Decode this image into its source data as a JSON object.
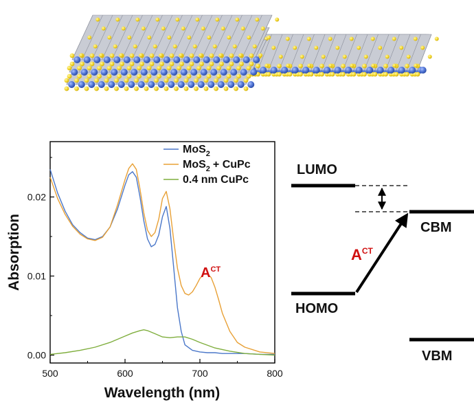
{
  "chart_data": {
    "type": "line",
    "xlabel": "Wavelength (nm)",
    "ylabel": "Absorption",
    "xlim": [
      500,
      800
    ],
    "ylim": [
      -0.001,
      0.027
    ],
    "xticks": [
      "500",
      "600",
      "700",
      "800"
    ],
    "yticks": [
      "0.00",
      "0.01",
      "0.02"
    ],
    "legend_placement": "top-right",
    "series": [
      {
        "name": "MoS2",
        "legend": {
          "base": "MoS",
          "sub": "2",
          "rest": ""
        },
        "color": "#4a77c9",
        "x": [
          500,
          510,
          520,
          530,
          540,
          550,
          560,
          570,
          580,
          590,
          600,
          605,
          610,
          615,
          620,
          625,
          630,
          635,
          640,
          645,
          650,
          655,
          660,
          665,
          670,
          675,
          680,
          690,
          700,
          710,
          720,
          730,
          740,
          760,
          780,
          800
        ],
        "y": [
          0.0235,
          0.0205,
          0.0182,
          0.0165,
          0.0155,
          0.0148,
          0.0146,
          0.015,
          0.0162,
          0.0185,
          0.0215,
          0.0228,
          0.0232,
          0.0225,
          0.02,
          0.017,
          0.0147,
          0.0137,
          0.014,
          0.0152,
          0.0175,
          0.0188,
          0.016,
          0.011,
          0.006,
          0.003,
          0.0013,
          0.0006,
          0.0004,
          0.0003,
          0.0003,
          0.0002,
          0.0002,
          0.0002,
          0.0001,
          0.0001
        ]
      },
      {
        "name": "MoS2 + CuPc",
        "legend": {
          "base": "MoS",
          "sub": "2",
          "rest": "+ CuPc"
        },
        "color": "#e8a035",
        "x": [
          500,
          510,
          520,
          530,
          540,
          550,
          560,
          570,
          580,
          590,
          600,
          605,
          610,
          615,
          620,
          625,
          630,
          635,
          640,
          645,
          650,
          655,
          660,
          665,
          670,
          675,
          680,
          685,
          690,
          695,
          700,
          705,
          710,
          715,
          720,
          725,
          730,
          740,
          750,
          760,
          780,
          800
        ],
        "y": [
          0.0225,
          0.0198,
          0.0178,
          0.0163,
          0.0153,
          0.0147,
          0.0145,
          0.0149,
          0.0162,
          0.019,
          0.0222,
          0.0236,
          0.0242,
          0.0235,
          0.021,
          0.018,
          0.0158,
          0.015,
          0.0155,
          0.0172,
          0.0198,
          0.0207,
          0.0185,
          0.0145,
          0.011,
          0.0088,
          0.0078,
          0.0076,
          0.008,
          0.0088,
          0.0097,
          0.0102,
          0.0103,
          0.0098,
          0.0086,
          0.007,
          0.0053,
          0.003,
          0.0016,
          0.001,
          0.0004,
          0.0002
        ]
      },
      {
        "name": "0.4 nm CuPc",
        "legend": {
          "base": "0.4 nm CuPc",
          "sub": "",
          "rest": ""
        },
        "color": "#7fae3d",
        "x": [
          500,
          520,
          540,
          560,
          580,
          600,
          610,
          620,
          625,
          630,
          640,
          650,
          660,
          670,
          680,
          690,
          700,
          720,
          740,
          760,
          780,
          800
        ],
        "y": [
          0.0001,
          0.0003,
          0.0006,
          0.001,
          0.0016,
          0.0024,
          0.0028,
          0.0031,
          0.0032,
          0.0031,
          0.0027,
          0.0023,
          0.0022,
          0.0023,
          0.0023,
          0.002,
          0.0016,
          0.0009,
          0.0005,
          0.0002,
          0.0001,
          0.0
        ]
      }
    ],
    "annotations": [
      {
        "base": "A",
        "sup": "CT",
        "color": "#d01010"
      }
    ]
  },
  "energy_diagram": {
    "levels": [
      {
        "label": "LUMO"
      },
      {
        "label": "HOMO"
      },
      {
        "label": "CBM"
      },
      {
        "label": "VBM"
      }
    ],
    "transition": {
      "base": "A",
      "sup": "CT",
      "color": "#d01010"
    }
  },
  "colors": {
    "sulfur": "#f3d62a",
    "molybdenum": "#4a6fd1",
    "bond": "#8a8e9a",
    "annotation_red": "#d01010"
  }
}
